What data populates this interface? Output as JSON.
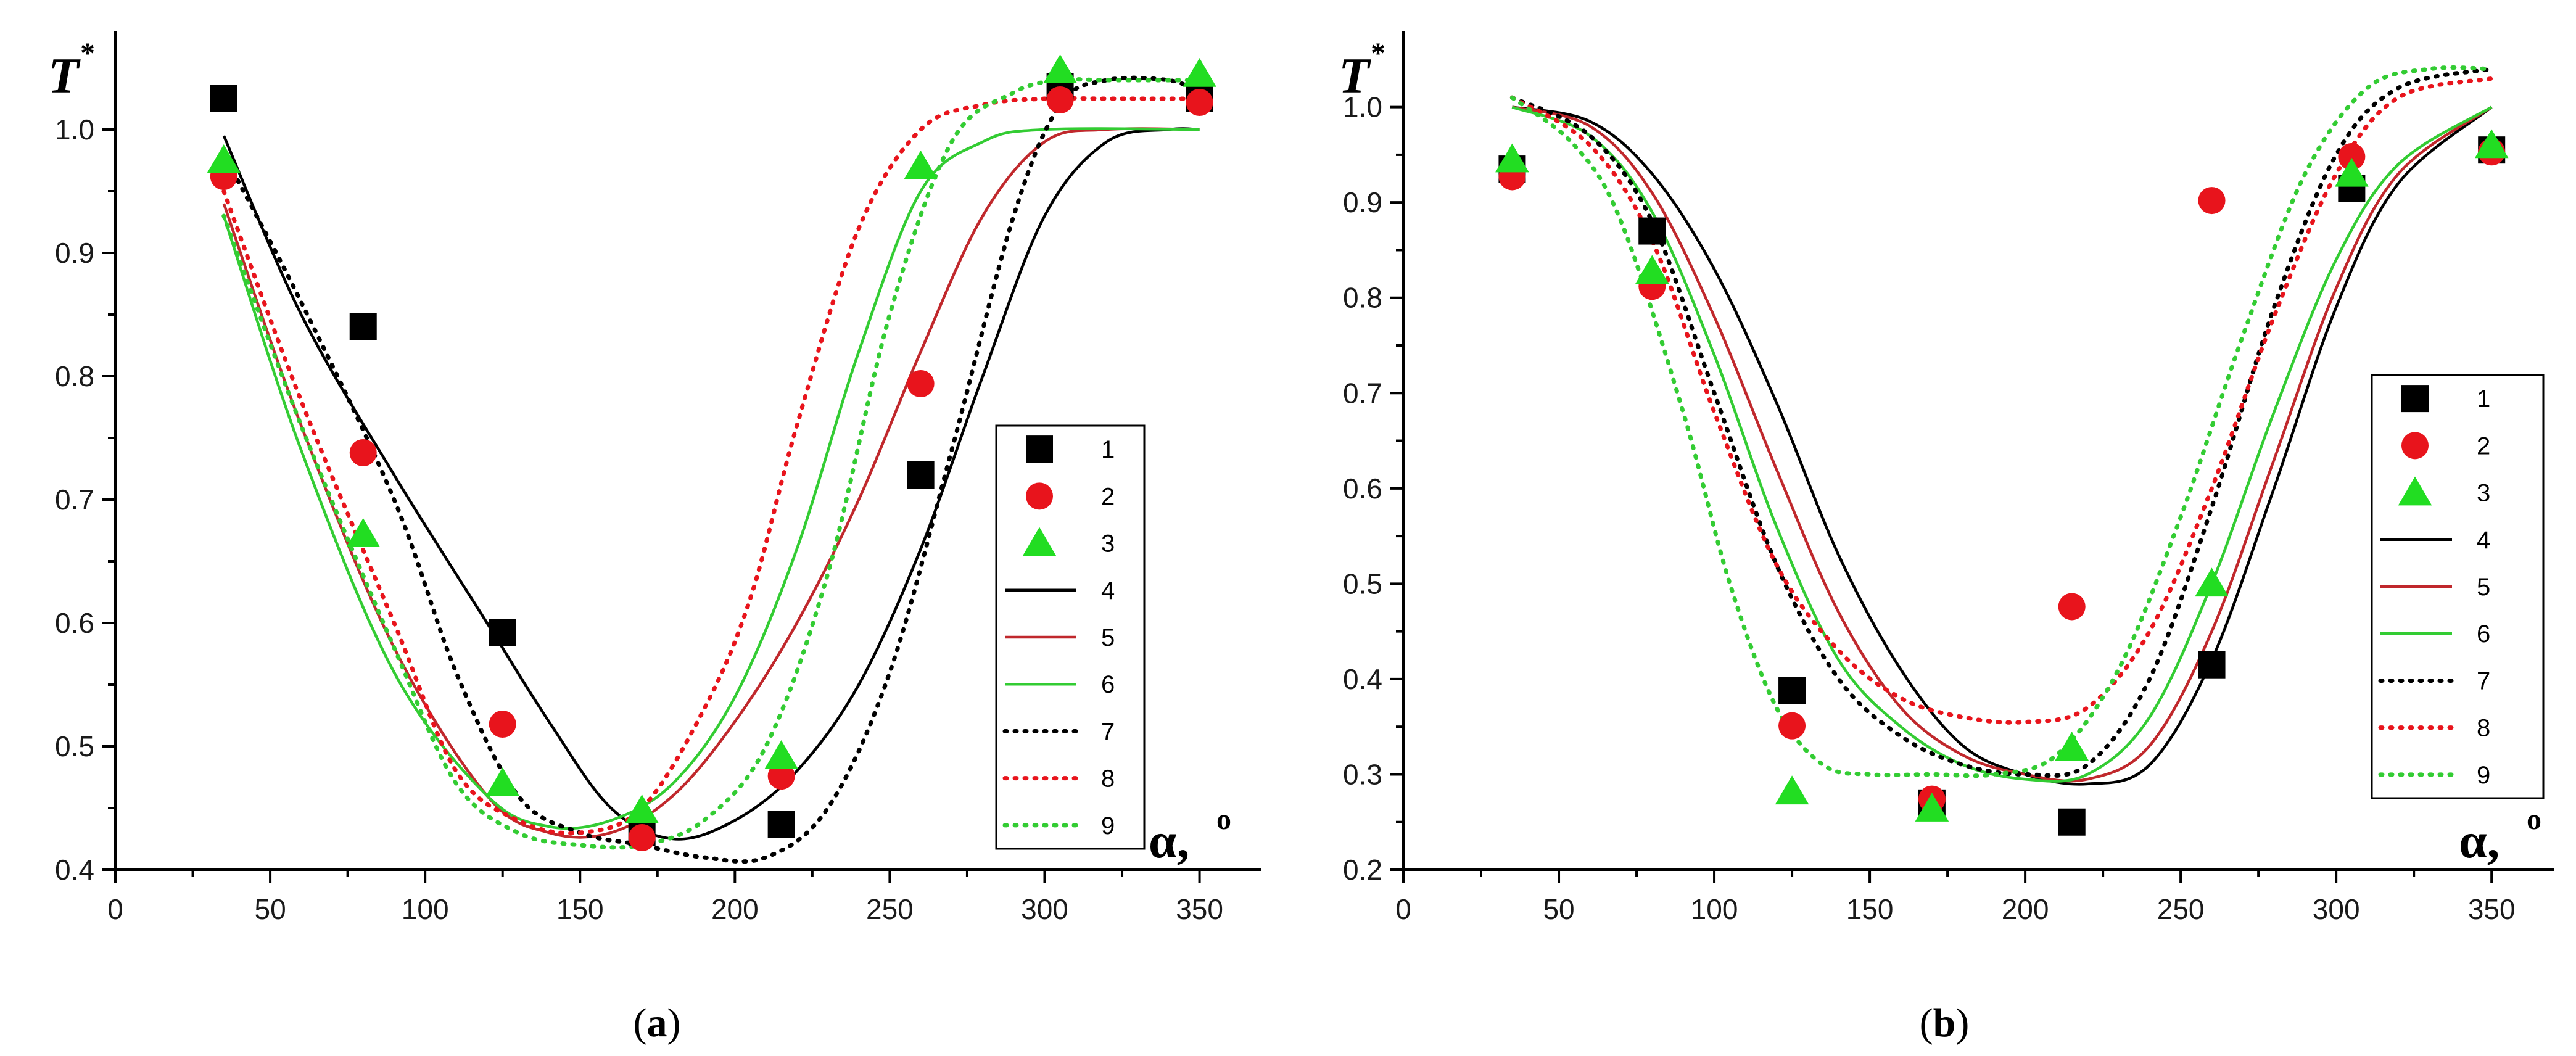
{
  "chart_data": [
    {
      "type": "line",
      "panel": "a",
      "panel_label": [
        "(",
        "a",
        ")"
      ],
      "ylabel": "T",
      "ylabel_sup": "*",
      "xlabel": "α,",
      "xlabel_sup": "o",
      "xlim": [
        0,
        370
      ],
      "ylim": [
        0.4,
        1.08
      ],
      "xticks": [
        0,
        50,
        100,
        150,
        200,
        250,
        300,
        350
      ],
      "yticks": [
        0.4,
        0.5,
        0.6,
        0.7,
        0.8,
        0.9,
        1.0
      ],
      "ytick_labels": [
        "0.4",
        "0.5",
        "0.6",
        "0.7",
        "0.8",
        "0.9",
        "1.0"
      ],
      "legend_position": "right",
      "markers": [
        {
          "name": "1",
          "shape": "square",
          "color": "#000000",
          "x": [
            35,
            80,
            125,
            170,
            215,
            260,
            305,
            350
          ],
          "y": [
            1.025,
            0.84,
            0.592,
            0.43,
            0.437,
            0.72,
            1.035,
            1.025
          ]
        },
        {
          "name": "2",
          "shape": "circle",
          "color": "#e8141c",
          "x": [
            35,
            80,
            125,
            170,
            215,
            260,
            305,
            350
          ],
          "y": [
            0.962,
            0.738,
            0.518,
            0.426,
            0.476,
            0.794,
            1.024,
            1.022
          ]
        },
        {
          "name": "3",
          "shape": "triangle",
          "color": "#22dd22",
          "x": [
            35,
            80,
            125,
            170,
            215,
            260,
            305,
            350
          ],
          "y": [
            0.975,
            0.672,
            0.47,
            0.448,
            0.492,
            0.97,
            1.048,
            1.045
          ]
        }
      ],
      "lines": [
        {
          "name": "4",
          "style": "solid",
          "color": "#000000",
          "x": [
            35,
            60,
            90,
            120,
            140,
            160,
            180,
            200,
            220,
            240,
            260,
            280,
            300,
            320,
            340,
            350
          ],
          "y": [
            0.995,
            0.85,
            0.72,
            0.6,
            0.52,
            0.45,
            0.425,
            0.44,
            0.48,
            0.55,
            0.66,
            0.8,
            0.93,
            0.99,
            1.0,
            1.0
          ]
        },
        {
          "name": "5",
          "style": "solid",
          "color": "#c0282c",
          "x": [
            35,
            60,
            90,
            120,
            140,
            160,
            180,
            200,
            220,
            240,
            260,
            280,
            300,
            320,
            350
          ],
          "y": [
            0.94,
            0.76,
            0.58,
            0.46,
            0.43,
            0.43,
            0.46,
            0.52,
            0.6,
            0.7,
            0.82,
            0.93,
            0.99,
            1.0,
            1.0
          ]
        },
        {
          "name": "6",
          "style": "solid",
          "color": "#33cc33",
          "x": [
            35,
            60,
            90,
            120,
            140,
            160,
            180,
            200,
            220,
            240,
            260,
            280,
            300,
            350
          ],
          "y": [
            0.93,
            0.74,
            0.56,
            0.46,
            0.435,
            0.44,
            0.47,
            0.54,
            0.66,
            0.82,
            0.95,
            0.99,
            1.0,
            1.0
          ]
        },
        {
          "name": "7",
          "style": "dotted",
          "color": "#000000",
          "x": [
            35,
            60,
            90,
            110,
            130,
            150,
            170,
            190,
            210,
            230,
            250,
            270,
            290,
            305,
            320,
            340,
            350
          ],
          "y": [
            0.98,
            0.86,
            0.7,
            0.56,
            0.46,
            0.43,
            0.42,
            0.41,
            0.41,
            0.45,
            0.56,
            0.74,
            0.93,
            1.02,
            1.04,
            1.04,
            1.03
          ]
        },
        {
          "name": "8",
          "style": "dotted",
          "color": "#e8141c",
          "x": [
            35,
            60,
            90,
            110,
            130,
            150,
            170,
            190,
            205,
            220,
            240,
            260,
            280,
            300,
            320,
            350
          ],
          "y": [
            0.95,
            0.78,
            0.6,
            0.48,
            0.44,
            0.43,
            0.45,
            0.53,
            0.62,
            0.76,
            0.92,
            1.0,
            1.02,
            1.025,
            1.025,
            1.025
          ]
        },
        {
          "name": "9",
          "style": "dotted",
          "color": "#33cc33",
          "x": [
            35,
            60,
            90,
            110,
            130,
            150,
            170,
            190,
            210,
            230,
            250,
            270,
            290,
            305,
            320,
            350
          ],
          "y": [
            0.93,
            0.76,
            0.58,
            0.47,
            0.43,
            0.42,
            0.42,
            0.44,
            0.5,
            0.64,
            0.85,
            0.99,
            1.03,
            1.04,
            1.04,
            1.04
          ]
        }
      ]
    },
    {
      "type": "line",
      "panel": "b",
      "panel_label": [
        "(",
        "b",
        ")"
      ],
      "ylabel": "T",
      "ylabel_sup": "*",
      "xlabel": "α,",
      "xlabel_sup": "o",
      "xlim": [
        0,
        370
      ],
      "ylim": [
        0.2,
        1.08
      ],
      "xticks": [
        0,
        50,
        100,
        150,
        200,
        250,
        300,
        350
      ],
      "yticks": [
        0.2,
        0.3,
        0.4,
        0.5,
        0.6,
        0.7,
        0.8,
        0.9,
        1.0
      ],
      "ytick_labels": [
        "0.2",
        "0.3",
        "0.4",
        "0.5",
        "0.6",
        "0.7",
        "0.8",
        "0.9",
        "1.0"
      ],
      "legend_position": "right",
      "markers": [
        {
          "name": "1",
          "shape": "square",
          "color": "#000000",
          "x": [
            35,
            80,
            125,
            170,
            215,
            260,
            305,
            350
          ],
          "y": [
            0.935,
            0.87,
            0.388,
            0.27,
            0.25,
            0.415,
            0.915,
            0.955
          ]
        },
        {
          "name": "2",
          "shape": "circle",
          "color": "#e8141c",
          "x": [
            35,
            80,
            125,
            170,
            215,
            260,
            305,
            350
          ],
          "y": [
            0.927,
            0.812,
            0.351,
            0.274,
            0.476,
            0.902,
            0.948,
            0.953
          ]
        },
        {
          "name": "3",
          "shape": "triangle",
          "color": "#22dd22",
          "x": [
            35,
            80,
            125,
            170,
            215,
            260,
            305,
            350
          ],
          "y": [
            0.945,
            0.828,
            0.282,
            0.264,
            0.328,
            0.5,
            0.93,
            0.96
          ]
        }
      ],
      "lines": [
        {
          "name": "4",
          "style": "solid",
          "color": "#000000",
          "x": [
            35,
            60,
            80,
            100,
            120,
            140,
            160,
            180,
            200,
            220,
            240,
            260,
            280,
            300,
            320,
            350
          ],
          "y": [
            1.0,
            0.985,
            0.93,
            0.83,
            0.69,
            0.53,
            0.41,
            0.33,
            0.3,
            0.29,
            0.31,
            0.42,
            0.6,
            0.79,
            0.92,
            1.0
          ]
        },
        {
          "name": "5",
          "style": "solid",
          "color": "#c0282c",
          "x": [
            35,
            60,
            80,
            100,
            120,
            140,
            160,
            180,
            200,
            220,
            240,
            260,
            280,
            300,
            320,
            350
          ],
          "y": [
            1.0,
            0.98,
            0.91,
            0.78,
            0.62,
            0.47,
            0.37,
            0.32,
            0.3,
            0.295,
            0.33,
            0.45,
            0.63,
            0.81,
            0.93,
            1.0
          ]
        },
        {
          "name": "6",
          "style": "solid",
          "color": "#33cc33",
          "x": [
            35,
            60,
            80,
            100,
            120,
            140,
            160,
            180,
            200,
            220,
            240,
            260,
            280,
            300,
            320,
            350
          ],
          "y": [
            1.0,
            0.97,
            0.89,
            0.74,
            0.56,
            0.42,
            0.35,
            0.31,
            0.295,
            0.3,
            0.36,
            0.5,
            0.68,
            0.84,
            0.94,
            1.0
          ]
        },
        {
          "name": "7",
          "style": "dotted",
          "color": "#000000",
          "x": [
            35,
            60,
            80,
            100,
            120,
            140,
            160,
            180,
            200,
            220,
            240,
            260,
            280,
            300,
            320,
            350
          ],
          "y": [
            1.01,
            0.97,
            0.88,
            0.7,
            0.52,
            0.4,
            0.34,
            0.31,
            0.3,
            0.31,
            0.4,
            0.58,
            0.79,
            0.95,
            1.02,
            1.04
          ]
        },
        {
          "name": "8",
          "style": "dotted",
          "color": "#e8141c",
          "x": [
            35,
            60,
            80,
            100,
            120,
            140,
            160,
            180,
            200,
            220,
            240,
            260,
            280,
            300,
            320,
            350
          ],
          "y": [
            1.01,
            0.96,
            0.86,
            0.68,
            0.52,
            0.43,
            0.38,
            0.36,
            0.355,
            0.37,
            0.45,
            0.6,
            0.78,
            0.93,
            1.01,
            1.03
          ]
        },
        {
          "name": "9",
          "style": "dotted",
          "color": "#33cc33",
          "x": [
            35,
            55,
            70,
            90,
            105,
            120,
            135,
            150,
            170,
            190,
            210,
            230,
            250,
            270,
            290,
            310,
            330,
            350
          ],
          "y": [
            1.01,
            0.96,
            0.88,
            0.68,
            0.5,
            0.37,
            0.31,
            0.3,
            0.3,
            0.3,
            0.32,
            0.41,
            0.57,
            0.76,
            0.93,
            1.02,
            1.04,
            1.04
          ]
        }
      ]
    }
  ]
}
